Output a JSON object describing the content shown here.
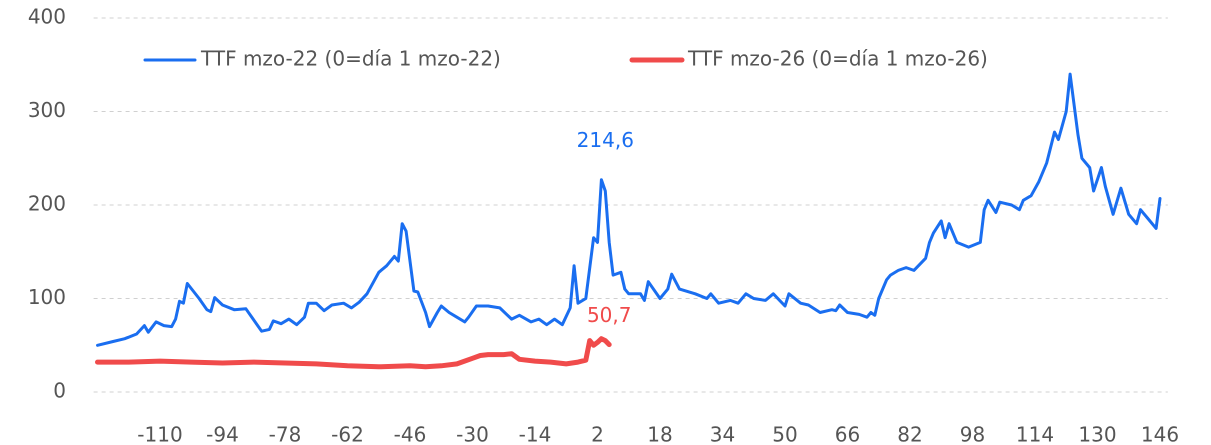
{
  "chart_data": {
    "type": "line",
    "xlim": [
      -127,
      148
    ],
    "xticks": [
      -110,
      -94,
      -78,
      -62,
      -46,
      -30,
      -14,
      2,
      18,
      34,
      50,
      66,
      82,
      98,
      114,
      130,
      146
    ],
    "ylim": [
      0,
      400
    ],
    "yticks": [
      0,
      100,
      200,
      300,
      400
    ],
    "grid": true,
    "legend": "top",
    "series": [
      {
        "name": "TTF mzo-22 (0=día 1 mzo-22)",
        "color": "#1a6ef0",
        "x": [
          -126,
          -122,
          -119,
          -116,
          -114,
          -113,
          -111,
          -109,
          -107,
          -106,
          -105,
          -104,
          -103,
          -100,
          -98,
          -97,
          -96,
          -94,
          -91,
          -88,
          -84,
          -82,
          -81,
          -79,
          -77,
          -75,
          -73,
          -72,
          -70,
          -68,
          -66,
          -63,
          -61,
          -59,
          -57,
          -54,
          -52,
          -50,
          -49,
          -48,
          -47,
          -45,
          -44,
          -42,
          -41,
          -39,
          -38,
          -36,
          -34,
          -32,
          -31,
          -29,
          -26,
          -23,
          -20,
          -18,
          -15,
          -13,
          -11,
          -9,
          -7,
          -5,
          -4,
          -3,
          -1,
          1,
          2,
          3,
          4,
          5,
          6,
          8,
          9,
          10,
          13,
          14,
          15,
          18,
          20,
          21,
          23,
          27,
          30,
          31,
          33,
          36,
          38,
          40,
          42,
          45,
          47,
          50,
          51,
          54,
          56,
          59,
          62,
          63,
          64,
          66,
          69,
          71,
          72,
          73,
          74,
          76,
          77,
          79,
          81,
          83,
          86,
          87,
          88,
          90,
          91,
          92,
          94,
          97,
          100,
          101,
          102,
          104,
          105,
          108,
          110,
          111,
          113,
          115,
          117,
          119,
          120,
          122,
          123,
          125,
          126,
          128,
          129,
          131,
          132,
          133,
          134,
          136,
          138,
          140,
          141,
          143,
          145,
          146
        ],
        "values": [
          50,
          54,
          57,
          62,
          71,
          64,
          75,
          71,
          70,
          78,
          97,
          95,
          116,
          100,
          88,
          86,
          101,
          93,
          88,
          89,
          65,
          67,
          76,
          73,
          78,
          72,
          80,
          95,
          95,
          87,
          93,
          95,
          90,
          96,
          105,
          128,
          135,
          145,
          140,
          180,
          172,
          108,
          107,
          85,
          70,
          85,
          92,
          85,
          80,
          75,
          80,
          92,
          92,
          90,
          78,
          82,
          75,
          78,
          72,
          78,
          72,
          90,
          135,
          95,
          100,
          165,
          160,
          227,
          215,
          160,
          125,
          128,
          110,
          105,
          105,
          98,
          118,
          100,
          110,
          126,
          110,
          105,
          100,
          105,
          95,
          98,
          95,
          105,
          100,
          98,
          105,
          92,
          105,
          95,
          93,
          85,
          88,
          87,
          93,
          85,
          83,
          80,
          85,
          82,
          100,
          120,
          125,
          130,
          133,
          130,
          143,
          160,
          170,
          183,
          165,
          180,
          160,
          155,
          160,
          195,
          205,
          192,
          203,
          200,
          195,
          205,
          210,
          225,
          245,
          278,
          270,
          300,
          340,
          275,
          250,
          240,
          215,
          240,
          220,
          205,
          190,
          218,
          190,
          180,
          195,
          185,
          175,
          207
        ]
      },
      {
        "name": "TTF mzo-26 (0=día 1 mzo-26)",
        "color": "#f04b4b",
        "x": [
          -126,
          -118,
          -110,
          -102,
          -94,
          -86,
          -78,
          -70,
          -62,
          -54,
          -46,
          -42,
          -38,
          -34,
          -30,
          -28,
          -26,
          -22,
          -20,
          -18,
          -14,
          -10,
          -6,
          -3,
          -1,
          0,
          1,
          2,
          3,
          4,
          5
        ],
        "values": [
          32,
          32,
          33,
          32,
          31,
          32,
          31,
          30,
          28,
          27,
          28,
          27,
          28,
          30,
          36,
          39,
          40,
          40,
          41,
          35,
          33,
          32,
          30,
          32,
          34,
          55,
          50,
          53,
          57,
          55,
          50.7
        ]
      }
    ],
    "annotations": [
      {
        "text": "214,6",
        "x": 4,
        "y": 214.6,
        "color": "#1a6ef0"
      },
      {
        "text": "50,7",
        "x": 5,
        "y": 50.7,
        "color": "#f04b4b"
      }
    ]
  }
}
